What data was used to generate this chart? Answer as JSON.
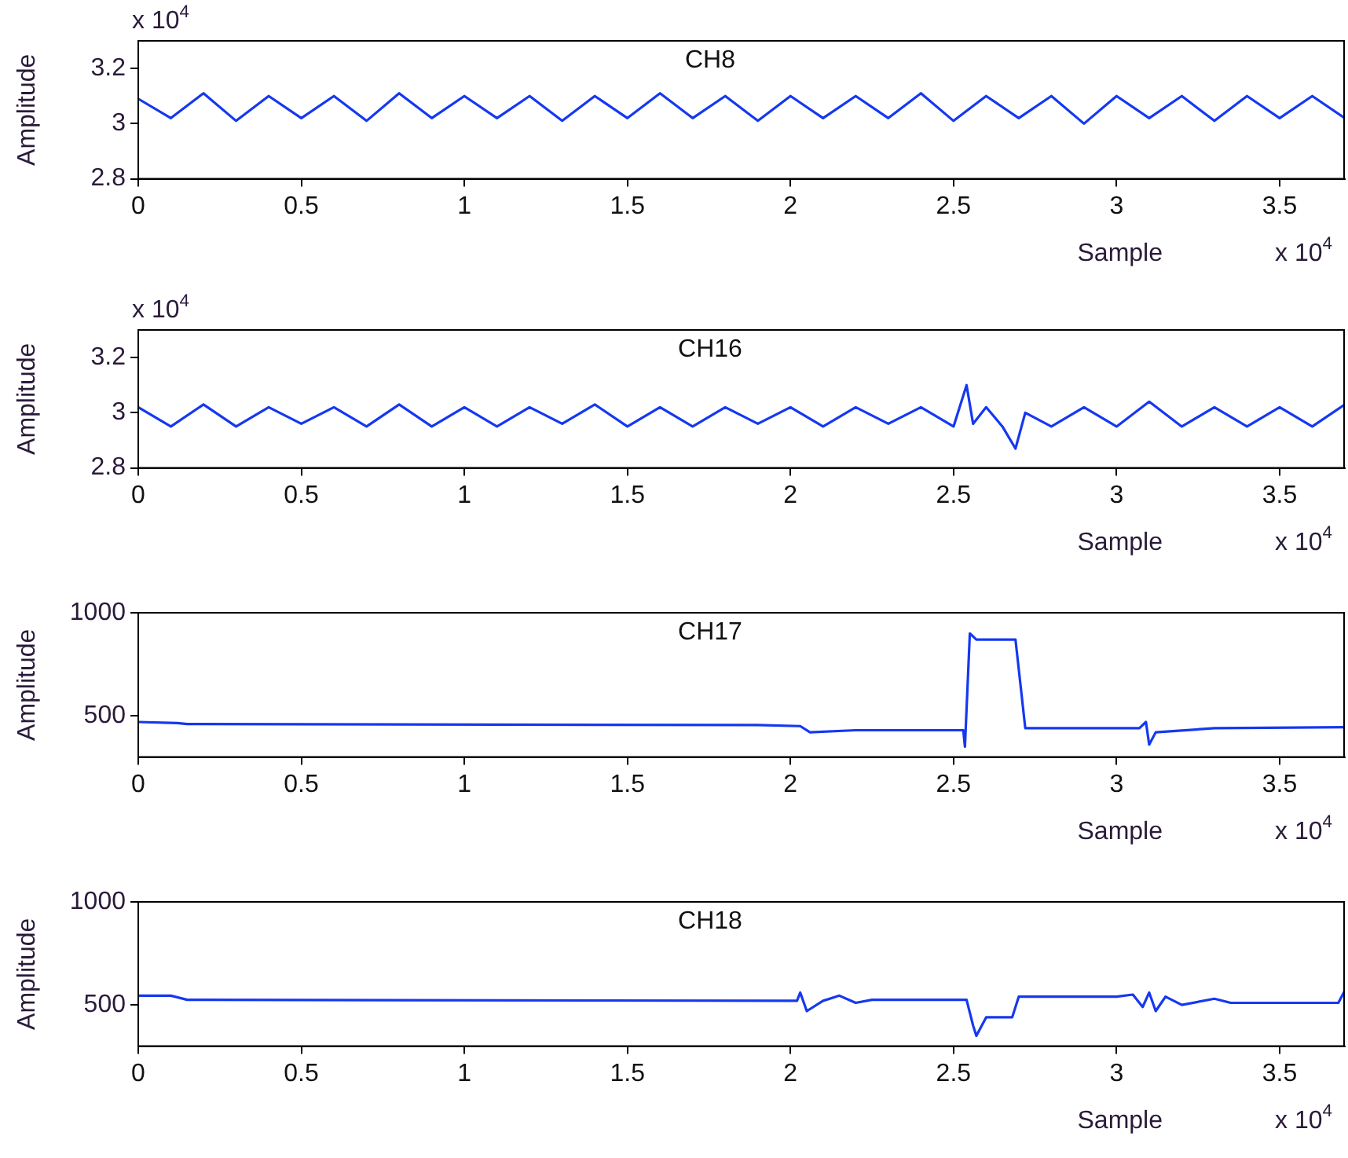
{
  "chart_data": [
    {
      "type": "line",
      "title": "CH8",
      "xlabel": "Sample",
      "ylabel": "Amplitude",
      "annotations": [
        "x 10$^{4}$",
        "x 10$^{4}$"
      ],
      "color": "#1538f0",
      "legend": false,
      "grid": false,
      "marker": "none",
      "x": [
        0,
        0.1,
        0.2,
        0.3,
        0.4,
        0.5,
        0.6,
        0.7,
        0.8,
        0.9,
        1.0,
        1.1,
        1.2,
        1.3,
        1.4,
        1.5,
        1.6,
        1.7,
        1.8,
        1.9,
        2.0,
        2.1,
        2.2,
        2.3,
        2.4,
        2.5,
        2.6,
        2.7,
        2.8,
        2.9,
        3.0,
        3.1,
        3.2,
        3.3,
        3.4,
        3.5,
        3.6,
        3.7
      ],
      "values": [
        3.09,
        3.02,
        3.11,
        3.01,
        3.1,
        3.02,
        3.1,
        3.01,
        3.11,
        3.02,
        3.1,
        3.02,
        3.1,
        3.01,
        3.1,
        3.02,
        3.11,
        3.02,
        3.1,
        3.01,
        3.1,
        3.02,
        3.1,
        3.02,
        3.11,
        3.01,
        3.1,
        3.02,
        3.1,
        3.0,
        3.1,
        3.02,
        3.1,
        3.01,
        3.1,
        3.02,
        3.1,
        3.02
      ],
      "xlim": [
        0,
        3.7
      ],
      "xticks": [
        0,
        0.5,
        1,
        1.5,
        2,
        2.5,
        3,
        3.5
      ],
      "ylim": [
        2.8,
        3.3
      ],
      "yticks": [
        2.8,
        3,
        3.2
      ]
    },
    {
      "type": "line",
      "title": "CH16",
      "xlabel": "Sample",
      "ylabel": "Amplitude",
      "annotations": [
        "x 10$^{4}$",
        "x 10$^{4}$"
      ],
      "color": "#1538f0",
      "legend": false,
      "grid": false,
      "marker": "none",
      "x": [
        0,
        0.1,
        0.2,
        0.3,
        0.4,
        0.5,
        0.6,
        0.7,
        0.8,
        0.9,
        1.0,
        1.1,
        1.2,
        1.3,
        1.4,
        1.5,
        1.6,
        1.7,
        1.8,
        1.9,
        2.0,
        2.1,
        2.2,
        2.3,
        2.4,
        2.5,
        2.54,
        2.56,
        2.6,
        2.65,
        2.69,
        2.72,
        2.8,
        2.9,
        3.0,
        3.1,
        3.2,
        3.3,
        3.4,
        3.5,
        3.6,
        3.7
      ],
      "values": [
        3.02,
        2.95,
        3.03,
        2.95,
        3.02,
        2.96,
        3.02,
        2.95,
        3.03,
        2.95,
        3.02,
        2.95,
        3.02,
        2.96,
        3.03,
        2.95,
        3.02,
        2.95,
        3.02,
        2.96,
        3.02,
        2.95,
        3.02,
        2.96,
        3.02,
        2.95,
        3.1,
        2.96,
        3.02,
        2.95,
        2.87,
        3.0,
        2.95,
        3.02,
        2.95,
        3.04,
        2.95,
        3.02,
        2.95,
        3.02,
        2.95,
        3.03
      ],
      "xlim": [
        0,
        3.7
      ],
      "xticks": [
        0,
        0.5,
        1,
        1.5,
        2,
        2.5,
        3,
        3.5
      ],
      "ylim": [
        2.8,
        3.3
      ],
      "yticks": [
        2.8,
        3,
        3.2
      ]
    },
    {
      "type": "line",
      "title": "CH17",
      "xlabel": "Sample",
      "ylabel": "Amplitude",
      "annotations": [
        "x 10$^{4}$"
      ],
      "color": "#1538f0",
      "legend": false,
      "grid": false,
      "marker": "none",
      "x": [
        0,
        0.12,
        0.15,
        1.9,
        2.03,
        2.06,
        2.2,
        2.53,
        2.535,
        2.55,
        2.57,
        2.69,
        2.72,
        2.8,
        3.07,
        3.09,
        3.1,
        3.12,
        3.3,
        3.7
      ],
      "values": [
        470,
        465,
        460,
        455,
        450,
        420,
        430,
        430,
        350,
        900,
        870,
        870,
        440,
        440,
        440,
        470,
        360,
        420,
        440,
        445
      ],
      "xlim": [
        0,
        3.7
      ],
      "xticks": [
        0,
        0.5,
        1,
        1.5,
        2,
        2.5,
        3,
        3.5
      ],
      "ylim": [
        300,
        1000
      ],
      "yticks": [
        500,
        1000
      ]
    },
    {
      "type": "line",
      "title": "CH18",
      "xlabel": "Sample",
      "ylabel": "Amplitude",
      "annotations": [
        "x 10$^{4}$"
      ],
      "color": "#1538f0",
      "legend": false,
      "grid": false,
      "marker": "none",
      "x": [
        0,
        0.1,
        0.15,
        2.0,
        2.02,
        2.03,
        2.05,
        2.1,
        2.15,
        2.2,
        2.25,
        2.54,
        2.56,
        2.57,
        2.6,
        2.68,
        2.7,
        3.0,
        3.05,
        3.08,
        3.1,
        3.12,
        3.15,
        3.2,
        3.3,
        3.35,
        3.68,
        3.7
      ],
      "values": [
        545,
        545,
        525,
        520,
        520,
        560,
        470,
        520,
        545,
        510,
        525,
        525,
        400,
        350,
        440,
        440,
        540,
        540,
        550,
        490,
        560,
        470,
        540,
        500,
        530,
        510,
        510,
        570
      ],
      "xlim": [
        0,
        3.7
      ],
      "xticks": [
        0,
        0.5,
        1,
        1.5,
        2,
        2.5,
        3,
        3.5
      ],
      "ylim": [
        300,
        1000
      ],
      "yticks": [
        500,
        1000
      ]
    }
  ]
}
